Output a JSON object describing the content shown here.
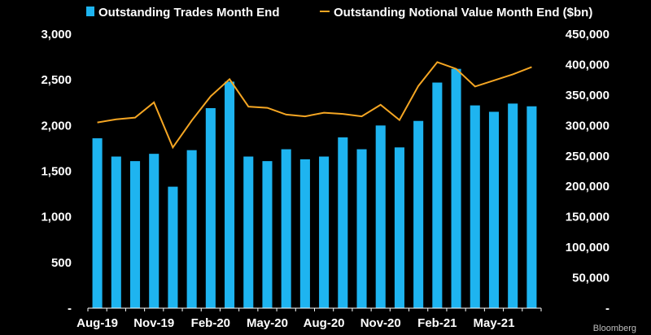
{
  "chart_data": {
    "type": "bar+line",
    "legend": {
      "placement": "top",
      "bar_label": "Outstanding Trades Month End",
      "line_label": "Outstanding Notional Value Month End ($bn)"
    },
    "x_tick_labels": [
      "Aug-19",
      "Nov-19",
      "Feb-20",
      "May-20",
      "Aug-20",
      "Nov-20",
      "Feb-21",
      "May-21"
    ],
    "months": [
      "Aug-19",
      "Sep-19",
      "Oct-19",
      "Nov-19",
      "Dec-19",
      "Jan-20",
      "Feb-20",
      "Mar-20",
      "Apr-20",
      "May-20",
      "Jun-20",
      "Jul-20",
      "Aug-20",
      "Sep-20",
      "Oct-20",
      "Nov-20",
      "Dec-20",
      "Jan-21",
      "Feb-21",
      "Mar-21",
      "Apr-21",
      "May-21",
      "Jun-21",
      "Jul-21"
    ],
    "series": [
      {
        "name": "Outstanding Trades Month End",
        "type": "bar",
        "axis": "left",
        "color": "#1EB4F0",
        "values": [
          1860,
          1660,
          1610,
          1690,
          1330,
          1730,
          2190,
          2480,
          1660,
          1610,
          1740,
          1630,
          1660,
          1870,
          1740,
          2000,
          1760,
          2050,
          2470,
          2620,
          2220,
          2150,
          2240,
          2210
        ]
      },
      {
        "name": "Outstanding Notional Value Month End ($bn)",
        "type": "line",
        "axis": "right",
        "color": "#F5A623",
        "values": [
          305000,
          310000,
          313000,
          338000,
          264000,
          308000,
          348000,
          376000,
          331000,
          329000,
          318000,
          315000,
          321000,
          319000,
          315000,
          334000,
          309000,
          365000,
          404000,
          393000,
          364000,
          374000,
          384000,
          396000
        ]
      }
    ],
    "left_axis": {
      "ylim": [
        0,
        3000
      ],
      "ticks": [
        0,
        500,
        1000,
        1500,
        2000,
        2500,
        3000
      ],
      "tick_labels": [
        "-",
        "500",
        "1,000",
        "1,500",
        "2,000",
        "2,500",
        "3,000"
      ]
    },
    "right_axis": {
      "ylim": [
        0,
        450000
      ],
      "ticks": [
        0,
        50000,
        100000,
        150000,
        200000,
        250000,
        300000,
        350000,
        400000,
        450000
      ],
      "tick_labels": [
        "-",
        "50,000",
        "100,000",
        "150,000",
        "200,000",
        "250,000",
        "300,000",
        "350,000",
        "400,000",
        "450,000"
      ]
    },
    "grid": false,
    "background": "#000000"
  },
  "source_label": "Bloomberg"
}
